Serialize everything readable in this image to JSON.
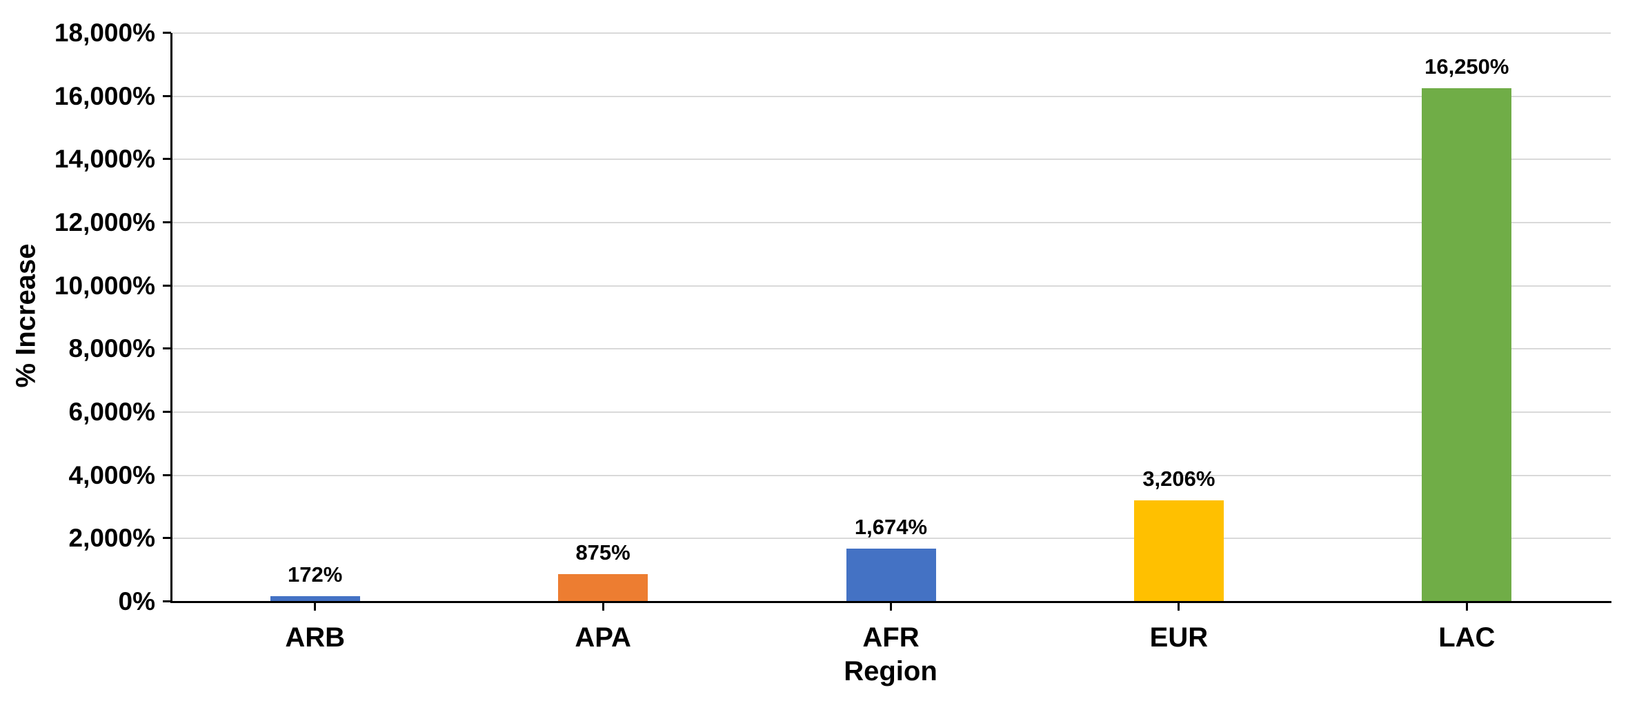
{
  "chart_data": {
    "type": "bar",
    "title": "",
    "xlabel": "Region",
    "ylabel": "% Increase",
    "categories": [
      "ARB",
      "APA",
      "AFR",
      "EUR",
      "LAC"
    ],
    "values": [
      172,
      875,
      1674,
      3206,
      16250
    ],
    "value_labels": [
      "172%",
      "875%",
      "1,674%",
      "3,206%",
      "16,250%"
    ],
    "bar_colors": [
      "#4472C4",
      "#ED7D31",
      "#4472C4",
      "#FFC000",
      "#70AD47"
    ],
    "ylim": [
      0,
      18000
    ],
    "ytick_step": 2000,
    "ytick_labels": [
      "0%",
      "2,000%",
      "4,000%",
      "6,000%",
      "8,000%",
      "10,000%",
      "12,000%",
      "14,000%",
      "16,000%",
      "18,000%"
    ],
    "grid": true,
    "legend": "none",
    "gridline_color": "#D9D9D9",
    "axis_color": "#000000",
    "text_color": "#000000",
    "background_color": "#FFFFFF"
  }
}
